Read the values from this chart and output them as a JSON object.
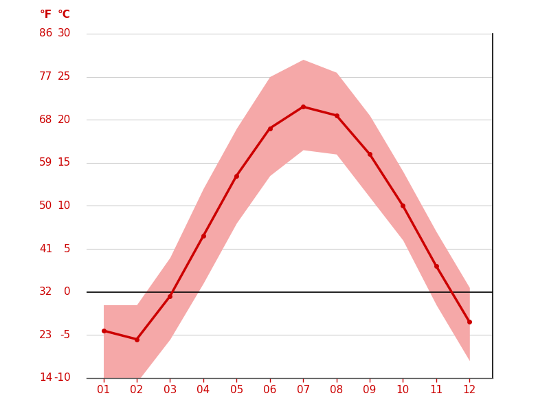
{
  "months": [
    1,
    2,
    3,
    4,
    5,
    6,
    7,
    8,
    9,
    10,
    11,
    12
  ],
  "month_labels": [
    "01",
    "02",
    "03",
    "04",
    "05",
    "06",
    "07",
    "08",
    "09",
    "10",
    "11",
    "12"
  ],
  "avg_temp_c": [
    -4.5,
    -5.5,
    -0.5,
    6.5,
    13.5,
    19.0,
    21.5,
    20.5,
    16.0,
    10.0,
    3.0,
    -3.5
  ],
  "max_temp_c": [
    -1.5,
    -1.5,
    4.0,
    12.0,
    19.0,
    25.0,
    27.0,
    25.5,
    20.5,
    14.0,
    7.0,
    0.5
  ],
  "min_temp_c": [
    -10.0,
    -10.5,
    -5.5,
    1.0,
    8.0,
    13.5,
    16.5,
    16.0,
    11.0,
    6.0,
    -1.5,
    -8.0
  ],
  "ylim_c": [
    -10,
    30
  ],
  "yticks_c": [
    -10,
    -5,
    0,
    5,
    10,
    15,
    20,
    25,
    30
  ],
  "yticks_f": [
    14,
    23,
    32,
    41,
    50,
    59,
    68,
    77,
    86
  ],
  "line_color": "#cc0000",
  "fill_color": "#f5a8a8",
  "zero_line_color": "#000000",
  "grid_color": "#cccccc",
  "label_color": "#cc0000",
  "background_color": "#ffffff",
  "label_f": "°F",
  "label_c": "°C"
}
